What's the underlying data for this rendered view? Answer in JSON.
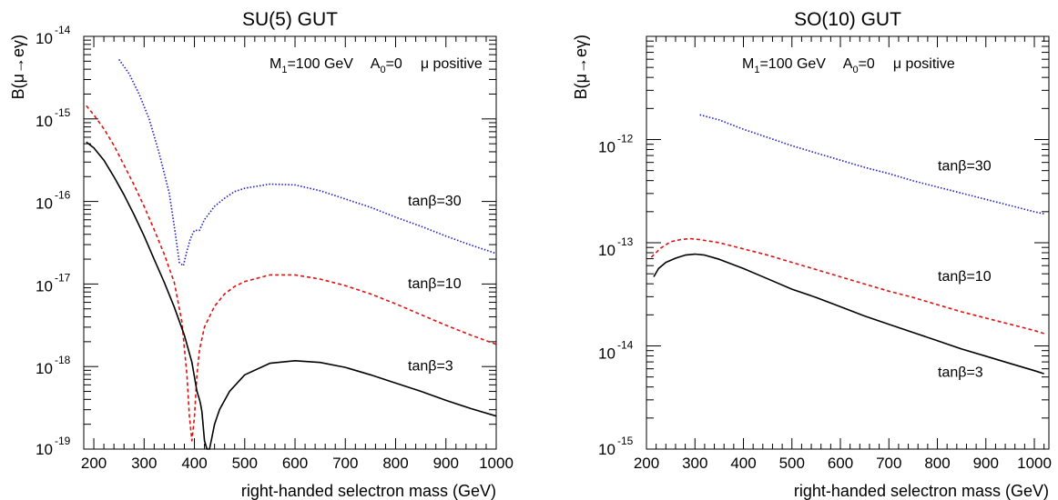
{
  "chart_data": [
    {
      "type": "line",
      "title": "SU(5) GUT",
      "xlabel": "right-handed selectron mass (GeV)",
      "ylabel": "B(μ→eγ)",
      "annotation": {
        "m1": "M",
        "m1_sub": "1",
        "m1_rest": "=100 GeV",
        "a0": "A",
        "a0_sub": "0",
        "a0_rest": "=0",
        "mu": "μ positive"
      },
      "xlim": [
        180,
        1000
      ],
      "ylim_exp": [
        -19,
        -14
      ],
      "yscale": "log",
      "x_ticks": [
        200,
        300,
        400,
        500,
        600,
        700,
        800,
        900,
        1000
      ],
      "x_tick_labels": [
        "200",
        "300",
        "400",
        "500",
        "600",
        "700",
        "800",
        "900",
        "1000"
      ],
      "y_ticks": [
        -19,
        -18,
        -17,
        -16,
        -15,
        -14
      ],
      "y_tick_base": "10",
      "y_tick_exps": [
        "-19",
        "-18",
        "-17",
        "-16",
        "-15",
        "-14"
      ],
      "series": [
        {
          "name": "tanβ=30",
          "color": "#1a1acc",
          "style": "dotted",
          "x": [
            250,
            270,
            290,
            310,
            330,
            350,
            360,
            370,
            378,
            385,
            392,
            400,
            410,
            420,
            440,
            460,
            480,
            500,
            550,
            600,
            650,
            700,
            750,
            800,
            850,
            900,
            950,
            1000
          ],
          "log10y": [
            -14.28,
            -14.45,
            -14.7,
            -15.0,
            -15.42,
            -15.9,
            -16.3,
            -16.74,
            -16.78,
            -16.6,
            -16.45,
            -16.35,
            -16.35,
            -16.22,
            -16.06,
            -15.96,
            -15.88,
            -15.84,
            -15.79,
            -15.8,
            -15.87,
            -15.97,
            -16.07,
            -16.19,
            -16.3,
            -16.42,
            -16.53,
            -16.63
          ]
        },
        {
          "name": "tanβ=10",
          "color": "#dd1111",
          "style": "dashed",
          "x": [
            185,
            200,
            220,
            240,
            260,
            280,
            300,
            320,
            340,
            360,
            375,
            385,
            390,
            395,
            400,
            405,
            410,
            420,
            440,
            460,
            480,
            500,
            550,
            600,
            650,
            700,
            750,
            800,
            850,
            900,
            950,
            1000
          ],
          "log10y": [
            -14.84,
            -14.95,
            -15.12,
            -15.32,
            -15.56,
            -15.8,
            -16.06,
            -16.34,
            -16.64,
            -16.98,
            -17.45,
            -18.1,
            -18.6,
            -18.9,
            -18.62,
            -18.1,
            -17.8,
            -17.52,
            -17.27,
            -17.12,
            -17.03,
            -16.97,
            -16.89,
            -16.89,
            -16.94,
            -17.02,
            -17.12,
            -17.24,
            -17.37,
            -17.5,
            -17.62,
            -17.73
          ]
        },
        {
          "name": "tanβ=3",
          "color": "#000000",
          "style": "solid",
          "x": [
            185,
            200,
            220,
            240,
            260,
            280,
            300,
            320,
            340,
            360,
            380,
            395,
            405,
            410,
            412,
            415,
            420,
            425,
            430,
            435,
            440,
            450,
            470,
            500,
            550,
            600,
            650,
            700,
            750,
            800,
            850,
            900,
            950,
            1000
          ],
          "log10y": [
            -15.28,
            -15.35,
            -15.5,
            -15.7,
            -15.92,
            -16.16,
            -16.42,
            -16.7,
            -16.98,
            -17.28,
            -17.62,
            -17.95,
            -18.3,
            -18.4,
            -18.45,
            -18.55,
            -18.9,
            -19.2,
            -19.0,
            -18.85,
            -18.7,
            -18.52,
            -18.3,
            -18.1,
            -17.96,
            -17.93,
            -17.95,
            -18.01,
            -18.1,
            -18.2,
            -18.3,
            -18.41,
            -18.51,
            -18.6
          ]
        }
      ]
    },
    {
      "type": "line",
      "title": "SO(10) GUT",
      "xlabel": "right-handed selectron mass (GeV)",
      "ylabel": "B(μ→eγ)",
      "annotation": {
        "m1": "M",
        "m1_sub": "1",
        "m1_rest": "=100 GeV",
        "a0": "A",
        "a0_sub": "0",
        "a0_rest": "=0",
        "mu": "μ positive"
      },
      "xlim": [
        200,
        1030
      ],
      "ylim_exp": [
        -15,
        -11
      ],
      "yscale": "log",
      "x_ticks": [
        200,
        300,
        400,
        500,
        600,
        700,
        800,
        900,
        1000
      ],
      "x_tick_labels": [
        "200",
        "300",
        "400",
        "500",
        "600",
        "700",
        "800",
        "900",
        "1000"
      ],
      "y_ticks": [
        -15,
        -14,
        -13,
        -12
      ],
      "y_tick_base": "10",
      "y_tick_exps": [
        "-15",
        "-14",
        "-13",
        "-12"
      ],
      "series": [
        {
          "name": "tanβ=30",
          "color": "#1a1acc",
          "style": "dotted",
          "x": [
            310,
            350,
            400,
            450,
            500,
            550,
            600,
            650,
            700,
            750,
            800,
            850,
            900,
            950,
            1000,
            1020
          ],
          "log10y": [
            -11.76,
            -11.81,
            -11.9,
            -11.98,
            -12.06,
            -12.13,
            -12.2,
            -12.27,
            -12.33,
            -12.4,
            -12.46,
            -12.52,
            -12.58,
            -12.64,
            -12.7,
            -12.72
          ]
        },
        {
          "name": "tanβ=10",
          "color": "#dd1111",
          "style": "dashed",
          "x": [
            210,
            230,
            250,
            270,
            290,
            310,
            350,
            400,
            450,
            500,
            550,
            600,
            650,
            700,
            750,
            800,
            850,
            900,
            950,
            1000,
            1020
          ],
          "log10y": [
            -13.14,
            -13.05,
            -12.99,
            -12.97,
            -12.96,
            -12.97,
            -13.0,
            -13.06,
            -13.12,
            -13.19,
            -13.26,
            -13.33,
            -13.4,
            -13.47,
            -13.53,
            -13.6,
            -13.67,
            -13.73,
            -13.79,
            -13.85,
            -13.88
          ]
        },
        {
          "name": "tanβ=3",
          "color": "#000000",
          "style": "solid",
          "x": [
            215,
            225,
            240,
            260,
            280,
            300,
            320,
            350,
            400,
            450,
            500,
            550,
            600,
            650,
            700,
            750,
            800,
            850,
            900,
            950,
            1000,
            1020
          ],
          "log10y": [
            -13.33,
            -13.25,
            -13.19,
            -13.15,
            -13.12,
            -13.11,
            -13.12,
            -13.16,
            -13.25,
            -13.35,
            -13.45,
            -13.53,
            -13.62,
            -13.71,
            -13.79,
            -13.87,
            -13.95,
            -14.03,
            -14.1,
            -14.17,
            -14.24,
            -14.27
          ]
        }
      ]
    }
  ]
}
